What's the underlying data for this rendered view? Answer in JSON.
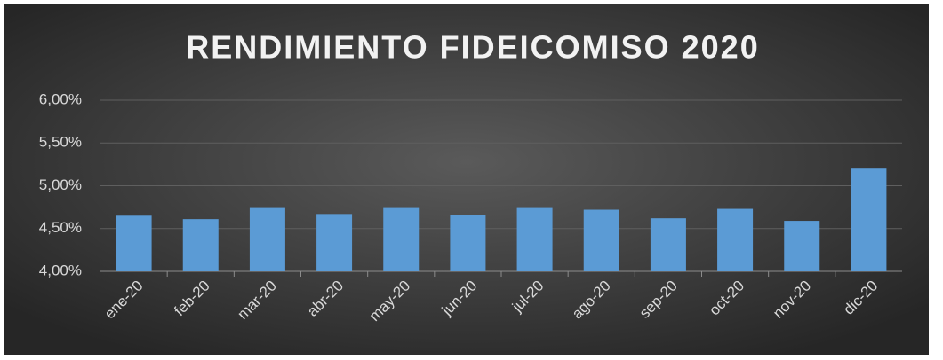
{
  "chart_data": {
    "type": "bar",
    "title": "RENDIMIENTO FIDEICOMISO 2020",
    "categories": [
      "ene-20",
      "feb-20",
      "mar-20",
      "abr-20",
      "may-20",
      "jun-20",
      "jul-20",
      "ago-20",
      "sep-20",
      "oct-20",
      "nov-20",
      "dic-20"
    ],
    "values": [
      4.65,
      4.61,
      4.74,
      4.67,
      4.74,
      4.66,
      4.74,
      4.72,
      4.62,
      4.73,
      4.59,
      5.2
    ],
    "color": "#5b9bd5",
    "ylim": [
      4,
      6
    ],
    "yticks": [
      {
        "value": 4,
        "label": "4,00%"
      },
      {
        "value": 4.5,
        "label": "4,50%"
      },
      {
        "value": 5,
        "label": "5,00%"
      },
      {
        "value": 5.5,
        "label": "5,50%"
      },
      {
        "value": 6,
        "label": "6,00%"
      }
    ],
    "grid": true
  }
}
